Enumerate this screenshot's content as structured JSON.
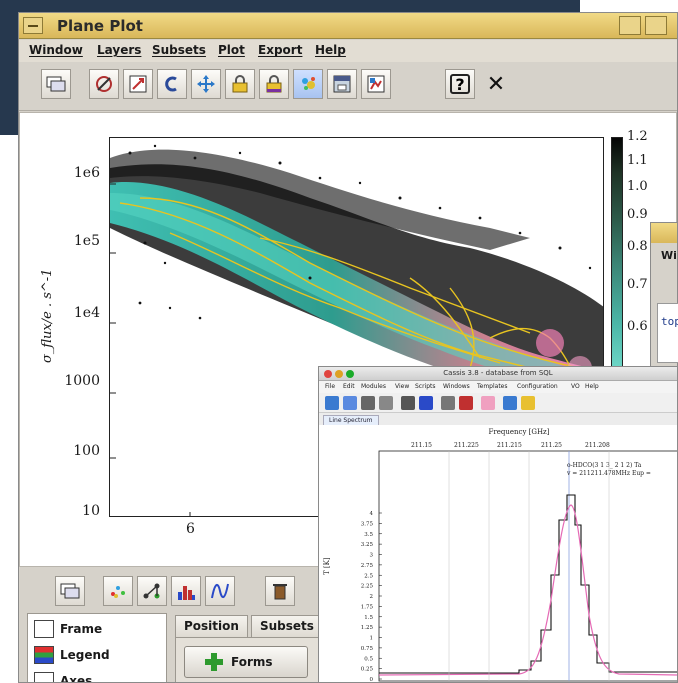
{
  "colors": {
    "title_bar": "#e6c86e",
    "window_bg": "#d6d2ca",
    "plot_frame": "#222222",
    "contour_yellow": "#e8c420",
    "spectrum_pink": "#e56ab5",
    "spectrum_black": "#111111"
  },
  "window": {
    "title": "Plane Plot",
    "menu": [
      "Window",
      "Layers",
      "Subsets",
      "Plot",
      "Export",
      "Help"
    ]
  },
  "toolbar": {
    "icons": [
      "new-window-icon",
      "axis-icon",
      "zoom-icon",
      "replot-icon",
      "pan-icon",
      "lock-x-icon",
      "lock-y-icon",
      "density-icon",
      "grid-icon",
      "export-icon",
      "help-icon",
      "close-icon"
    ],
    "close_glyph": "✕",
    "help_glyph": "?"
  },
  "plot": {
    "y_label": "σ_flux/e . s^-1",
    "y_ticks": [
      "1e6",
      "1e5",
      "1e4",
      "1000",
      "100",
      "10"
    ],
    "x_ticks": [
      "6"
    ],
    "colorbar_ticks": [
      "1.2",
      "1.1",
      "1.0",
      "0.9",
      "0.8",
      "0.7",
      "0.6"
    ]
  },
  "controls": {
    "icons": [
      "new-window-icon",
      "scatter-icon",
      "link-icon",
      "histogram-icon",
      "function-icon",
      "delete-icon"
    ]
  },
  "layers": {
    "items": [
      "Frame",
      "Legend",
      "Axes"
    ]
  },
  "tabs": [
    "Position",
    "Subsets"
  ],
  "forms_button": "Forms",
  "window2": {
    "menu_fragment": "Wi",
    "code_fragment": "top"
  },
  "cassis": {
    "title": "Cassis 3.8 - database from SQL",
    "menu": [
      "File",
      "Edit",
      "Modules",
      "View",
      "Scripts",
      "Windows",
      "Templates",
      "Configuration",
      "VO",
      "Help"
    ],
    "tab": "Line Spectrum",
    "axis_title": "Frequency [GHz]",
    "top_ticks": [
      "211.15",
      "211.225",
      "211.215",
      "211.25",
      "211.208"
    ],
    "y_label": "T [K]",
    "y_ticks": [
      "4",
      "3.75",
      "3.5",
      "3.25",
      "3",
      "2.75",
      "2.5",
      "2.25",
      "2",
      "1.75",
      "1.5",
      "1.25",
      "1",
      "0.75",
      "0.5",
      "0.25",
      "0"
    ],
    "annotation_line1": "o-HDCO(3 1 3_ 2 1 2) Ta",
    "annotation_line2": "v = 211211.478MHz Eup ="
  }
}
